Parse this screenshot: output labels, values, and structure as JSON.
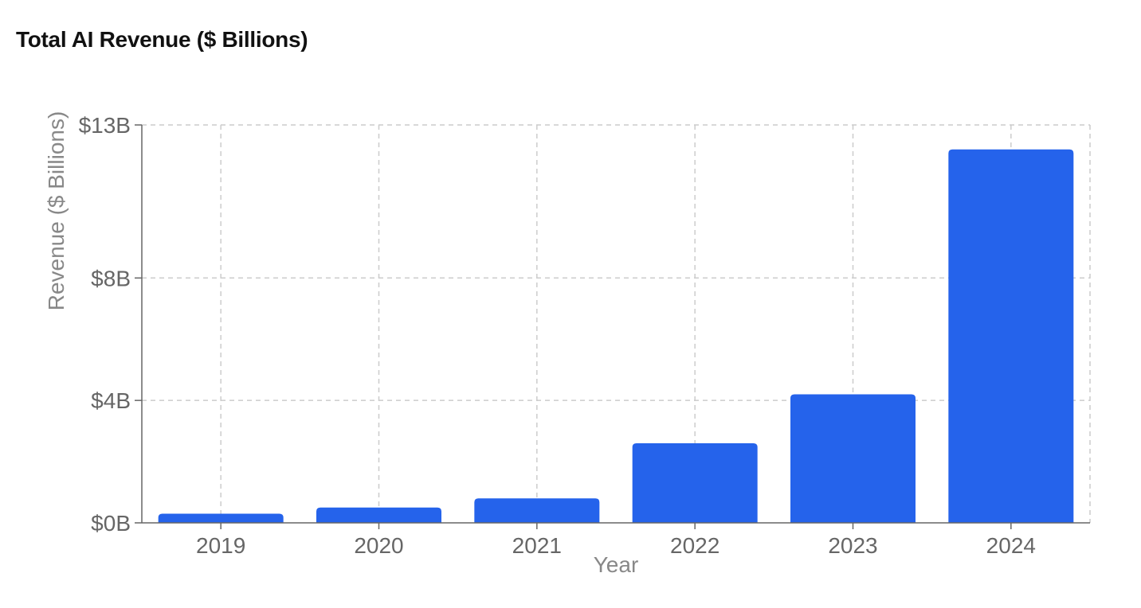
{
  "chart_data": {
    "type": "bar",
    "title": "Total AI Revenue ($ Billions)",
    "xlabel": "Year",
    "ylabel": "Revenue ($ Billions)",
    "categories": [
      "2019",
      "2020",
      "2021",
      "2022",
      "2023",
      "2024"
    ],
    "values": [
      0.3,
      0.5,
      0.8,
      2.6,
      4.2,
      12.2
    ],
    "ylim": [
      0,
      13
    ],
    "yticks": [
      0,
      4,
      8,
      13
    ],
    "ytick_labels": [
      "$0B",
      "$4B",
      "$8B",
      "$13B"
    ],
    "grid": true,
    "bar_color": "#2563eb",
    "legend": "none"
  }
}
